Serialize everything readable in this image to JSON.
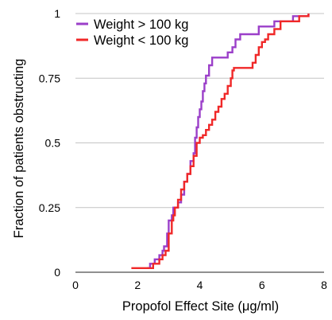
{
  "chart_data": {
    "type": "line",
    "subtype": "step",
    "title": "",
    "xlabel": "Propofol Effect Site (μg/ml)",
    "ylabel": "Fraction of patients obstructing",
    "xlim": [
      0,
      8
    ],
    "ylim": [
      0,
      1
    ],
    "x_ticks": [
      "0",
      "2",
      "4",
      "6",
      "8"
    ],
    "y_ticks": [
      "0",
      "0.25",
      "0.5",
      "0.75",
      "1"
    ],
    "y_tick_values": [
      0,
      0.25,
      0.5,
      0.75,
      1
    ],
    "x_tick_values": [
      0,
      2,
      4,
      6,
      8
    ],
    "grid": "horizontal",
    "legend_position": "top-left",
    "series": [
      {
        "name": "Weight > 100 kg",
        "color": "#9b3fc9",
        "points": [
          [
            2.3,
            0.016
          ],
          [
            2.4,
            0.033
          ],
          [
            2.55,
            0.05
          ],
          [
            2.7,
            0.066
          ],
          [
            2.8,
            0.083
          ],
          [
            2.85,
            0.1
          ],
          [
            2.95,
            0.15
          ],
          [
            3.0,
            0.2
          ],
          [
            3.1,
            0.22
          ],
          [
            3.15,
            0.25
          ],
          [
            3.3,
            0.27
          ],
          [
            3.4,
            0.3
          ],
          [
            3.5,
            0.35
          ],
          [
            3.6,
            0.38
          ],
          [
            3.7,
            0.43
          ],
          [
            3.8,
            0.46
          ],
          [
            3.85,
            0.52
          ],
          [
            3.9,
            0.56
          ],
          [
            3.95,
            0.6
          ],
          [
            4.0,
            0.63
          ],
          [
            4.05,
            0.66
          ],
          [
            4.1,
            0.7
          ],
          [
            4.15,
            0.73
          ],
          [
            4.2,
            0.76
          ],
          [
            4.3,
            0.8
          ],
          [
            4.4,
            0.83
          ],
          [
            4.9,
            0.85
          ],
          [
            5.05,
            0.87
          ],
          [
            5.15,
            0.9
          ],
          [
            5.3,
            0.92
          ],
          [
            5.9,
            0.95
          ],
          [
            6.4,
            0.97
          ],
          [
            7.0,
            0.99
          ],
          [
            7.5,
            1.0
          ]
        ]
      },
      {
        "name": "Weight < 100 kg",
        "color": "#f02828",
        "points": [
          [
            1.8,
            0.016
          ],
          [
            2.5,
            0.033
          ],
          [
            2.7,
            0.05
          ],
          [
            2.8,
            0.066
          ],
          [
            2.9,
            0.083
          ],
          [
            3.0,
            0.15
          ],
          [
            3.1,
            0.2
          ],
          [
            3.15,
            0.22
          ],
          [
            3.2,
            0.25
          ],
          [
            3.3,
            0.28
          ],
          [
            3.4,
            0.32
          ],
          [
            3.5,
            0.35
          ],
          [
            3.6,
            0.38
          ],
          [
            3.7,
            0.41
          ],
          [
            3.8,
            0.45
          ],
          [
            3.9,
            0.5
          ],
          [
            4.0,
            0.52
          ],
          [
            4.1,
            0.53
          ],
          [
            4.2,
            0.55
          ],
          [
            4.3,
            0.57
          ],
          [
            4.4,
            0.59
          ],
          [
            4.5,
            0.62
          ],
          [
            4.6,
            0.64
          ],
          [
            4.7,
            0.67
          ],
          [
            4.8,
            0.69
          ],
          [
            4.9,
            0.72
          ],
          [
            5.0,
            0.75
          ],
          [
            5.05,
            0.78
          ],
          [
            5.1,
            0.79
          ],
          [
            5.7,
            0.81
          ],
          [
            5.8,
            0.84
          ],
          [
            5.9,
            0.87
          ],
          [
            6.0,
            0.89
          ],
          [
            6.1,
            0.9
          ],
          [
            6.2,
            0.92
          ],
          [
            6.4,
            0.94
          ],
          [
            6.6,
            0.97
          ],
          [
            7.2,
            0.99
          ],
          [
            7.5,
            1.0
          ]
        ]
      }
    ]
  }
}
